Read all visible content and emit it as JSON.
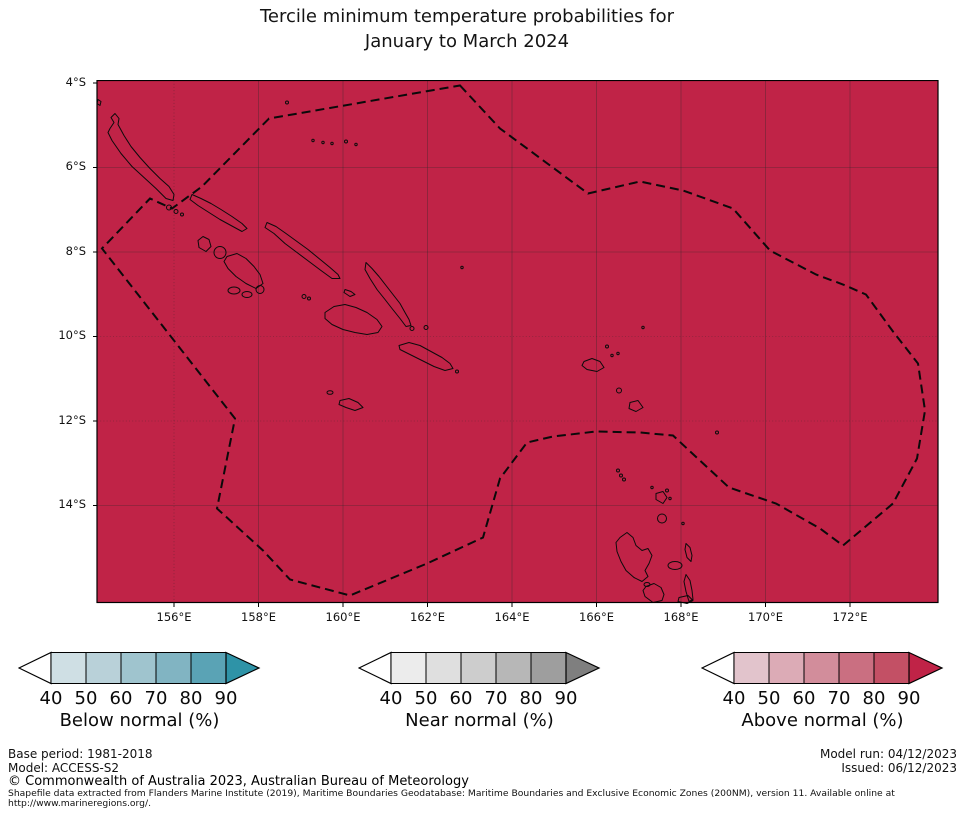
{
  "title": {
    "line1": "Tercile minimum temperature probabilities for",
    "line2": "January to March 2024"
  },
  "map": {
    "fill_color": "#c02347",
    "dominant_shading": "Above normal (%) > 90",
    "y_axis_labels": [
      "4°S",
      "6°S",
      "8°S",
      "10°S",
      "12°S",
      "14°S"
    ],
    "x_axis_labels": [
      "156°E",
      "158°E",
      "160°E",
      "162°E",
      "164°E",
      "166°E",
      "168°E",
      "170°E",
      "172°E"
    ]
  },
  "legend": {
    "tick_labels": [
      "40",
      "50",
      "60",
      "70",
      "80",
      "90"
    ],
    "groups": [
      {
        "label": "Below normal (%)",
        "segment_colors": [
          "#cfdfe4",
          "#b9d1d9",
          "#9fc4ce",
          "#81b4c2",
          "#5aa3b5"
        ],
        "arrow_color": "#2e93a7",
        "under_arrow_color": "#ffffff"
      },
      {
        "label": "Near normal (%)",
        "segment_colors": [
          "#ececec",
          "#dfdfdf",
          "#cdcdcd",
          "#b7b7b7",
          "#9e9e9e"
        ],
        "arrow_color": "#7f7f7f",
        "under_arrow_color": "#ffffff"
      },
      {
        "label": "Above normal (%)",
        "segment_colors": [
          "#e2c4cc",
          "#dcabb6",
          "#d28d9b",
          "#ca6f81",
          "#c35065"
        ],
        "arrow_color": "#c02347",
        "under_arrow_color": "#ffffff"
      }
    ]
  },
  "footer": {
    "base_period": "Base period: 1981-2018",
    "model": "Model: ACCESS-S2",
    "model_run": "Model run: 04/12/2023",
    "issued": "Issued: 06/12/2023",
    "copyright": "© Commonwealth of Australia 2023, Australian Bureau of Meteorology",
    "attribution_line1": "Shapefile data extracted from Flanders Marine Institute (2019), Maritime Boundaries Geodatabase: Maritime Boundaries and Exclusive Economic Zones (200NM), version 11. Available online at",
    "attribution_line2": "http://www.marineregions.org/."
  }
}
